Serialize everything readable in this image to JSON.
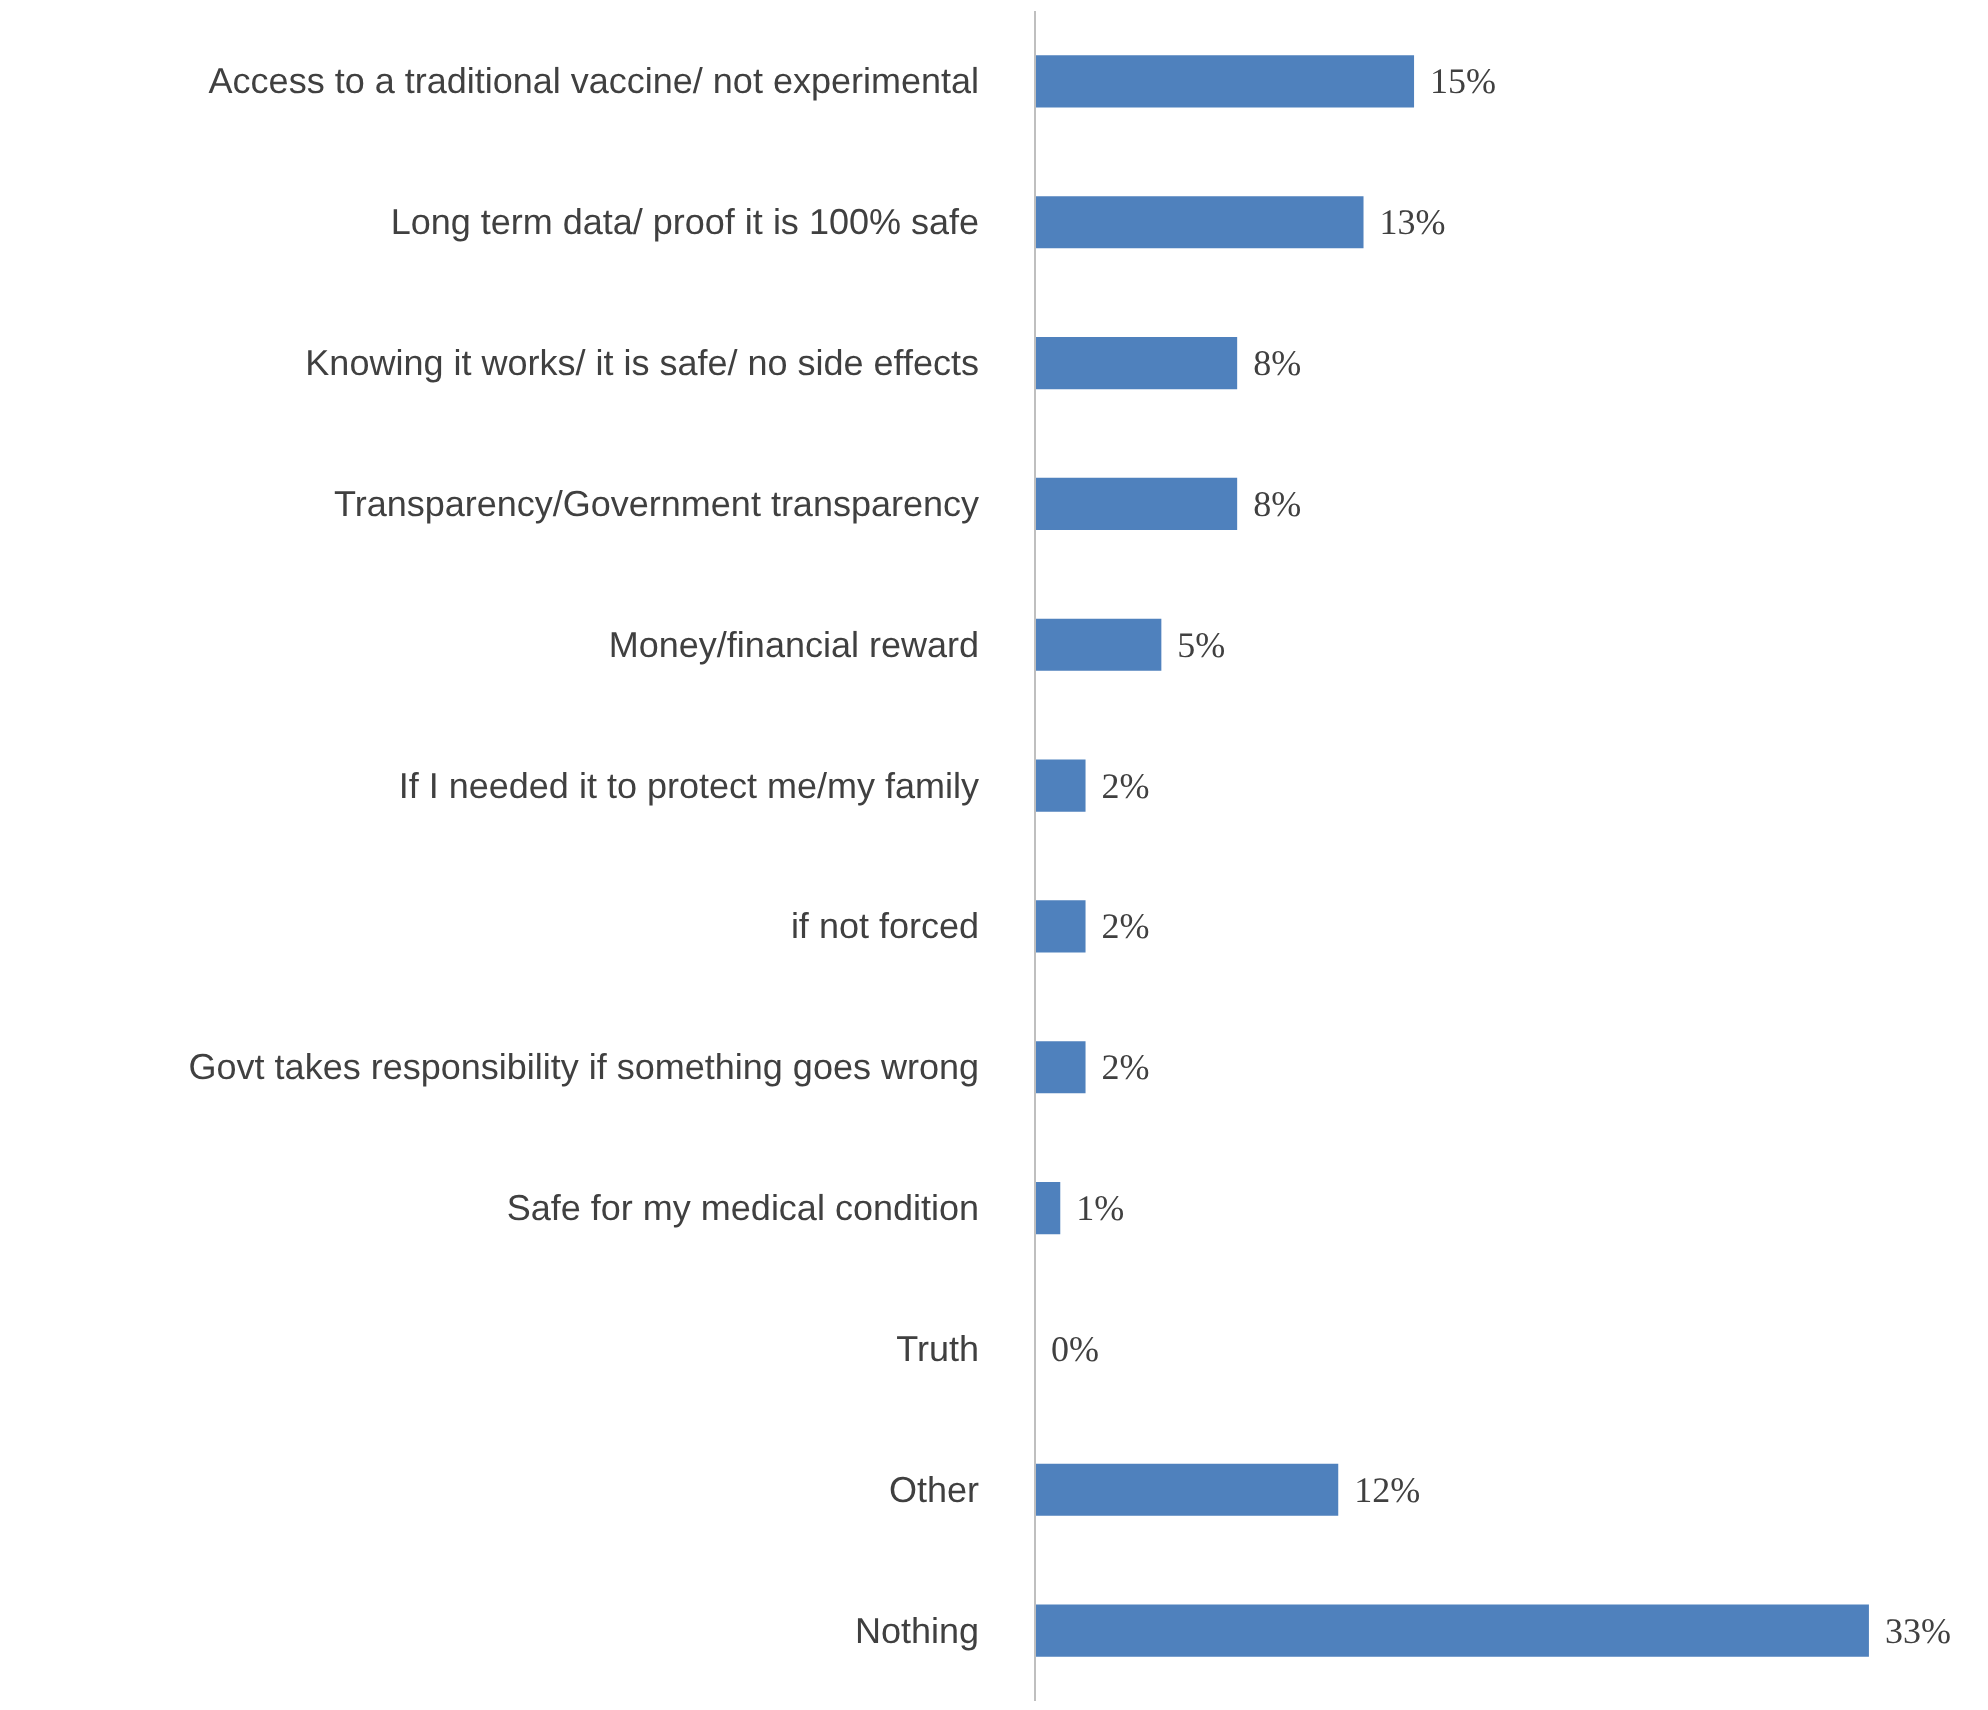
{
  "chart_data": {
    "type": "bar",
    "orientation": "horizontal",
    "categories": [
      "Access to a traditional vaccine/ not experimental",
      "Long term data/ proof it is 100% safe",
      "Knowing it works/ it is safe/ no side effects",
      "Transparency/Government transparency",
      "Money/financial reward",
      "If I needed it to protect me/my family",
      "if not forced",
      "Govt takes responsibility if something goes wrong",
      "Safe for my medical condition",
      "Truth",
      "Other",
      "Nothing"
    ],
    "values": [
      15,
      13,
      8,
      8,
      5,
      2,
      2,
      2,
      1,
      0,
      12,
      33
    ],
    "value_labels": [
      "15%",
      "13%",
      "8%",
      "8%",
      "5%",
      "2%",
      "2%",
      "2%",
      "1%",
      "0%",
      "12%",
      "33%"
    ],
    "color": "#4f81bd",
    "grid": false,
    "tick_labels": "y"
  }
}
